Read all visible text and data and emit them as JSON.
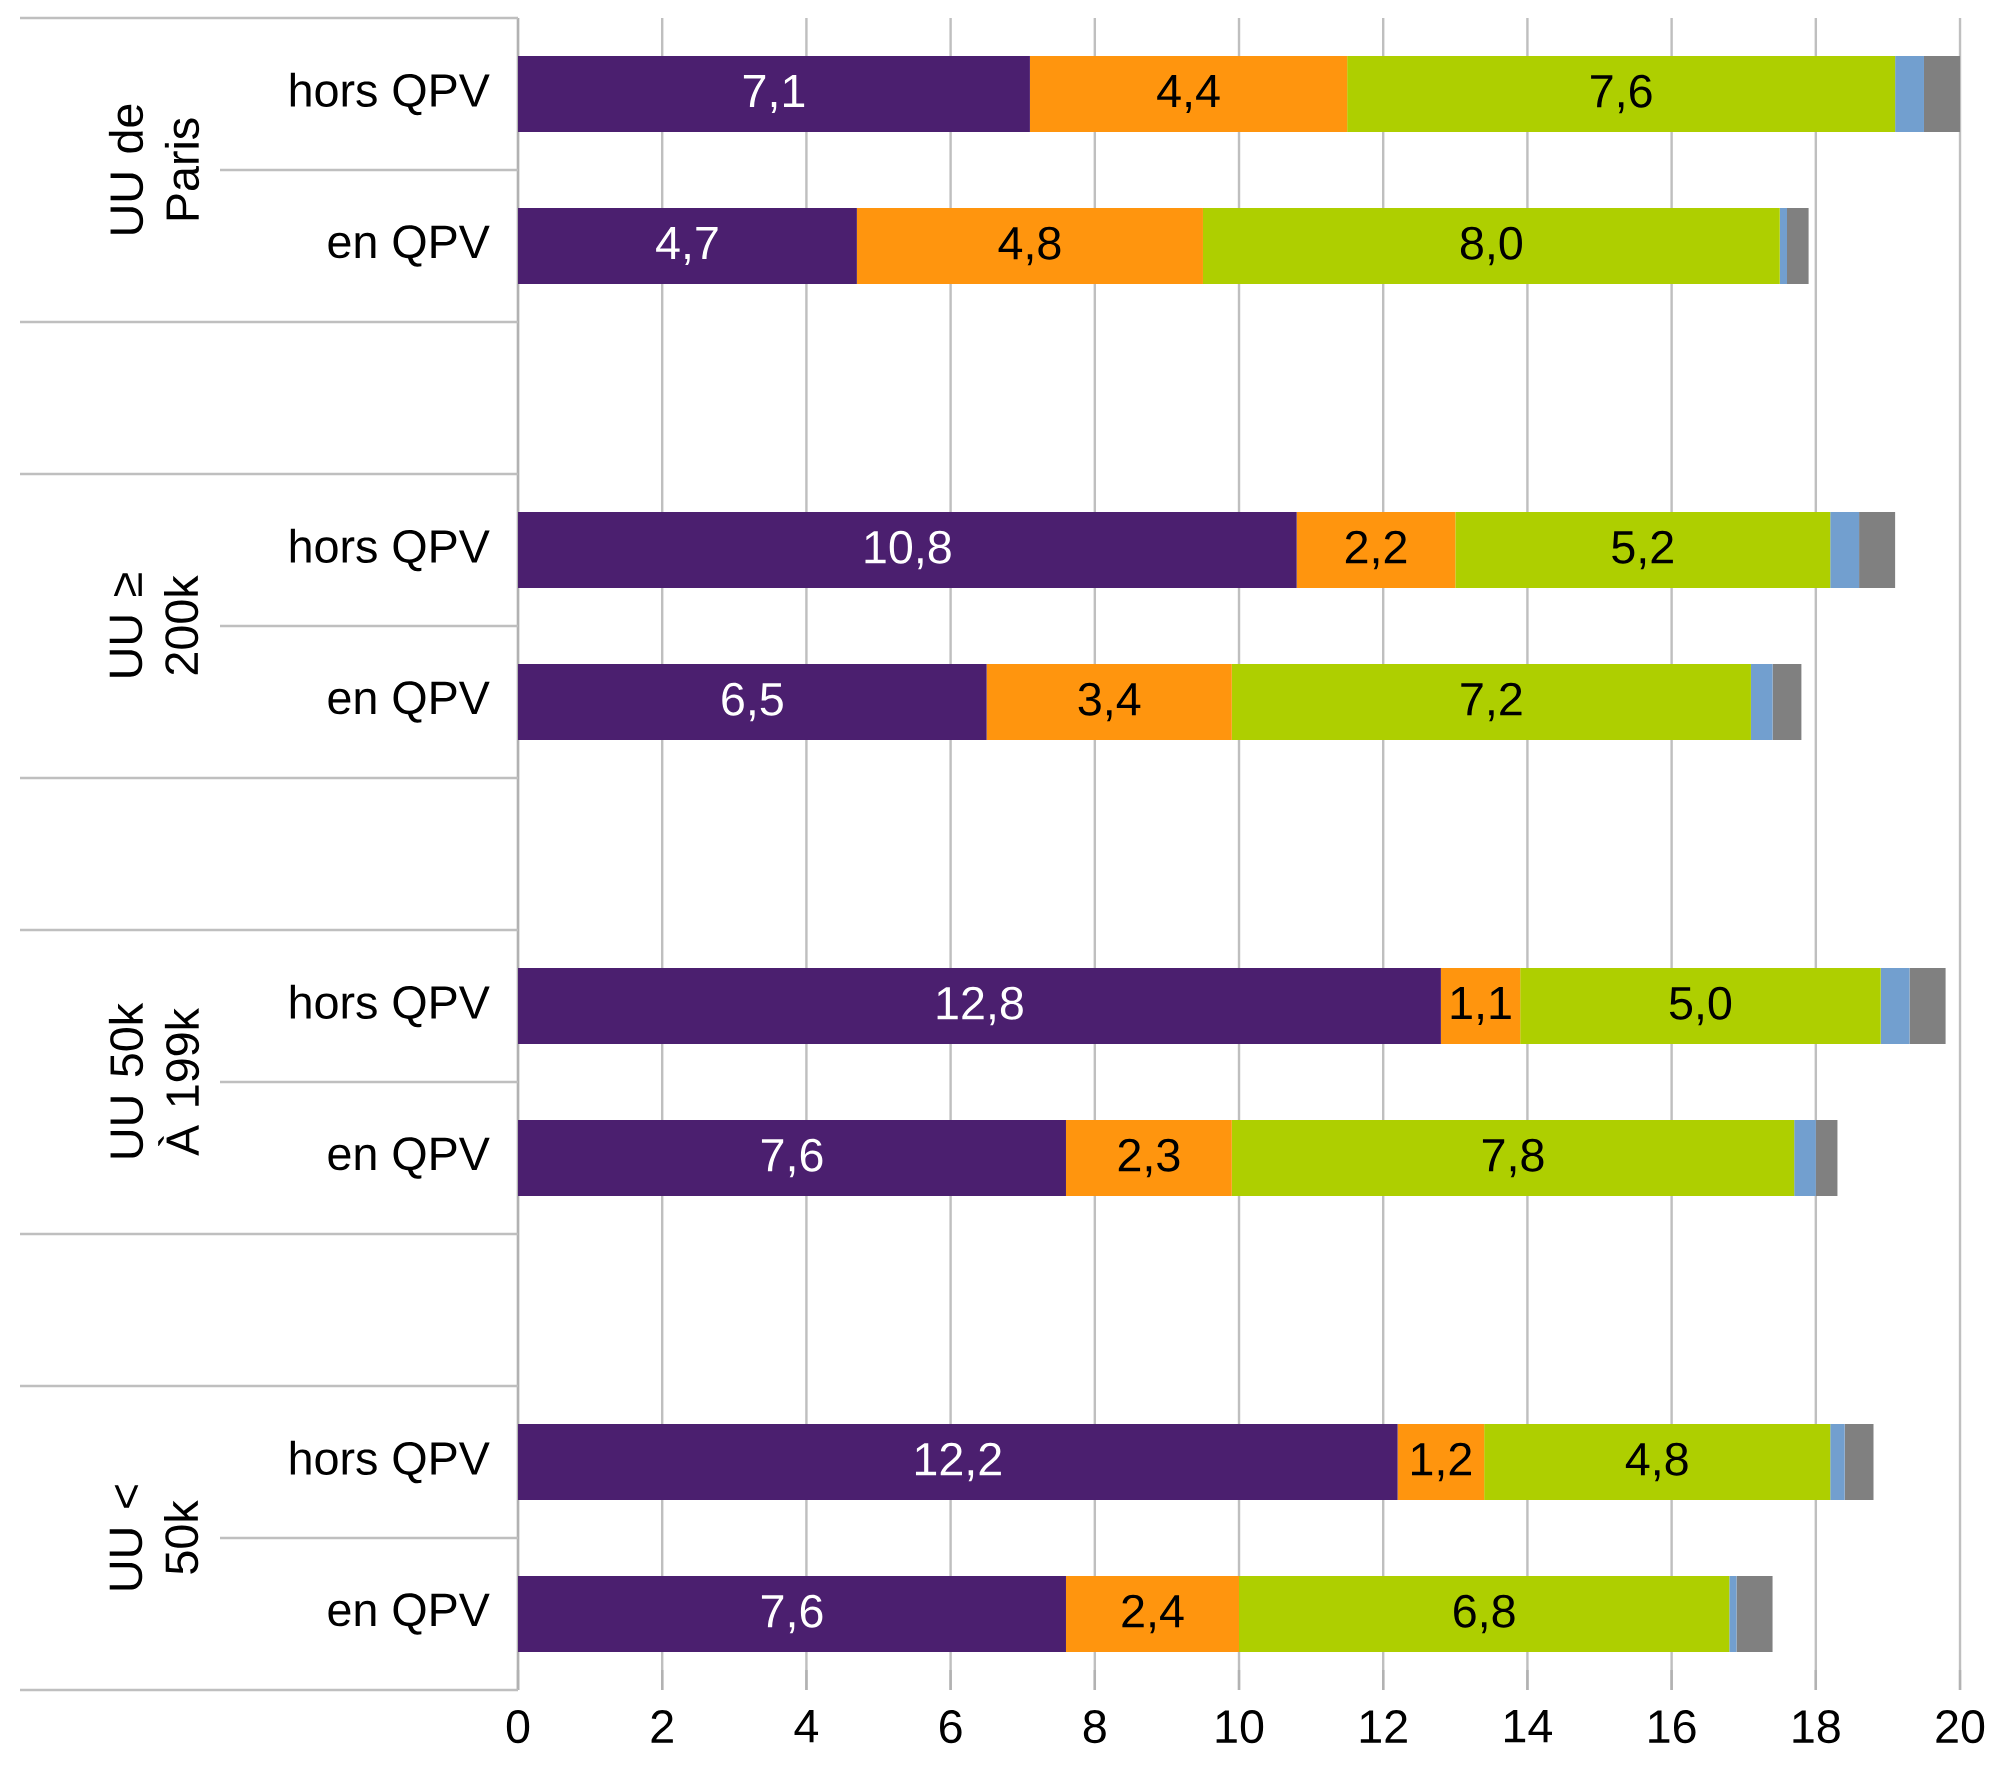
{
  "chart_data": {
    "type": "bar",
    "orientation": "horizontal",
    "stacked": true,
    "categories": [
      "hors QPV",
      "en QPV",
      "hors QPV",
      "en QPV",
      "hors QPV",
      "en QPV",
      "hors QPV",
      "en QPV"
    ],
    "annotations": [
      "UU de Paris",
      "UU ≥ 200k",
      "UU 50k À 199k",
      "UU < 50k"
    ],
    "series": [
      {
        "color": "#4b1f6f",
        "values": [
          7.1,
          4.7,
          10.8,
          6.5,
          12.8,
          7.6,
          12.2,
          7.6
        ],
        "value_labels": [
          "7,1",
          "4,7",
          "10,8",
          "6,5",
          "12,8",
          "7,6",
          "12,2",
          "7,6"
        ]
      },
      {
        "color": "#ff950e",
        "values": [
          4.4,
          4.8,
          2.2,
          3.4,
          1.1,
          2.3,
          1.2,
          2.4
        ],
        "value_labels": [
          "4,4",
          "4,8",
          "2,2",
          "3,4",
          "1,1",
          "2,3",
          "1,2",
          "2,4"
        ]
      },
      {
        "color": "#aecf00",
        "values": [
          7.6,
          8.0,
          5.2,
          7.2,
          5.0,
          7.8,
          4.8,
          6.8
        ],
        "value_labels": [
          "7,6",
          "8,0",
          "5,2",
          "7,2",
          "5,0",
          "7,8",
          "4,8",
          "6,8"
        ]
      },
      {
        "color": "#729fcf",
        "values": [
          0.4,
          0.1,
          0.4,
          0.3,
          0.4,
          0.3,
          0.2,
          0.1
        ]
      },
      {
        "color": "#808080",
        "values": [
          0.5,
          0.3,
          0.5,
          0.4,
          0.5,
          0.3,
          0.4,
          0.5
        ]
      }
    ],
    "xlim": [
      0,
      20
    ],
    "xticks": [
      0,
      2,
      4,
      6,
      8,
      10,
      12,
      14,
      16,
      18,
      20
    ],
    "grid": "x"
  }
}
